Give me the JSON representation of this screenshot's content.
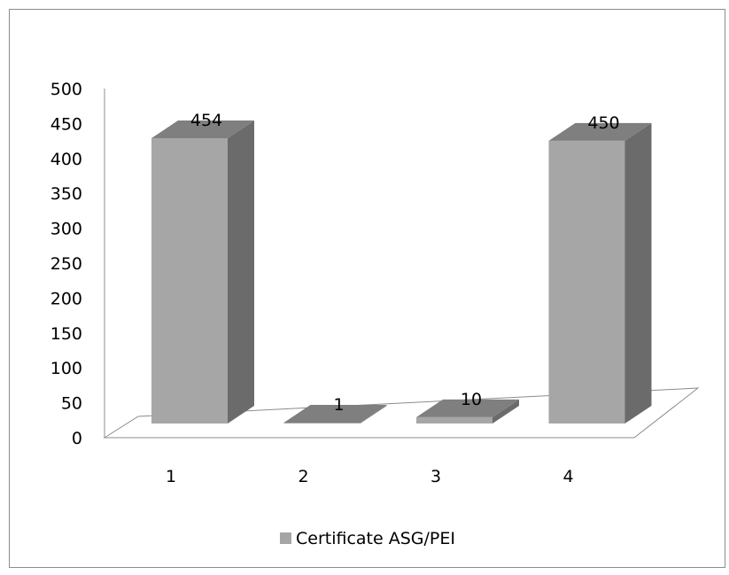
{
  "chart_data": {
    "type": "bar",
    "style": "3d-column",
    "categories": [
      "1",
      "2",
      "3",
      "4"
    ],
    "series": [
      {
        "name": "Certificate ASG/PEI",
        "values": [
          454,
          1,
          10,
          450
        ]
      }
    ],
    "data_labels": [
      "454",
      "1",
      "10",
      "450"
    ],
    "title": "",
    "xlabel": "",
    "ylabel": "",
    "ylim": [
      0,
      500
    ],
    "yticks": [
      "0",
      "50",
      "100",
      "150",
      "200",
      "250",
      "300",
      "350",
      "400",
      "450",
      "500"
    ],
    "grid": false,
    "legend_position": "bottom",
    "colors": {
      "bar_front": "#a6a6a6",
      "bar_side": "#6b6b6b",
      "bar_top": "#7f7f7f",
      "axis": "#8c8c8c",
      "frame": "#8c8c8c",
      "text": "#000000"
    }
  }
}
